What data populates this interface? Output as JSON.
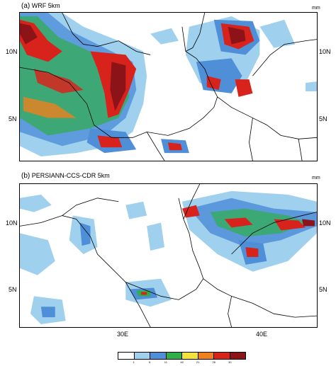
{
  "panels": [
    {
      "tag": "(a)",
      "title": "WRF 5km",
      "unit": "mm"
    },
    {
      "tag": "(b)",
      "title": "PERSIANN-CCS-CDR 5km",
      "unit": "mm"
    }
  ],
  "axes": {
    "lat_labels": [
      "10N",
      "5N"
    ],
    "lon_labels": [
      "30E",
      "40E"
    ]
  },
  "colorbar": {
    "colors": [
      "#ffffff",
      "#9fd0ee",
      "#4f8fd8",
      "#2fae4a",
      "#f2e23a",
      "#f07f1d",
      "#d8231c",
      "#8c1418"
    ],
    "labels": [
      "1",
      "6",
      "11",
      "16",
      "21",
      "26",
      "30"
    ]
  }
}
